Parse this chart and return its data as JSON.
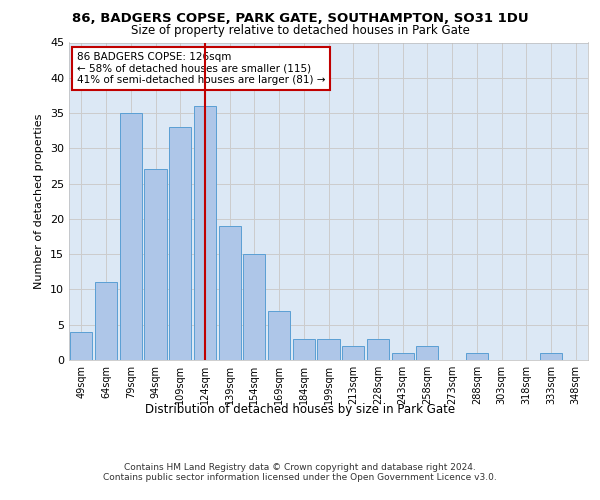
{
  "title": "86, BADGERS COPSE, PARK GATE, SOUTHAMPTON, SO31 1DU",
  "subtitle": "Size of property relative to detached houses in Park Gate",
  "xlabel": "Distribution of detached houses by size in Park Gate",
  "ylabel": "Number of detached properties",
  "categories": [
    "49sqm",
    "64sqm",
    "79sqm",
    "94sqm",
    "109sqm",
    "124sqm",
    "139sqm",
    "154sqm",
    "169sqm",
    "184sqm",
    "199sqm",
    "213sqm",
    "228sqm",
    "243sqm",
    "258sqm",
    "273sqm",
    "288sqm",
    "303sqm",
    "318sqm",
    "333sqm",
    "348sqm"
  ],
  "values": [
    4,
    11,
    35,
    27,
    33,
    36,
    19,
    15,
    7,
    3,
    3,
    2,
    3,
    1,
    2,
    0,
    1,
    0,
    0,
    1,
    0
  ],
  "bar_color": "#aec6e8",
  "bar_edge_color": "#5a9fd4",
  "highlight_index": 5,
  "highlight_color": "#c00000",
  "annotation_line1": "86 BADGERS COPSE: 126sqm",
  "annotation_line2": "← 58% of detached houses are smaller (115)",
  "annotation_line3": "41% of semi-detached houses are larger (81) →",
  "annotation_box_color": "#ffffff",
  "annotation_box_edge": "#c00000",
  "ylim": [
    0,
    45
  ],
  "yticks": [
    0,
    5,
    10,
    15,
    20,
    25,
    30,
    35,
    40,
    45
  ],
  "grid_color": "#cccccc",
  "background_color": "#dce8f5",
  "fig_background": "#ffffff",
  "footer_line1": "Contains HM Land Registry data © Crown copyright and database right 2024.",
  "footer_line2": "Contains public sector information licensed under the Open Government Licence v3.0."
}
